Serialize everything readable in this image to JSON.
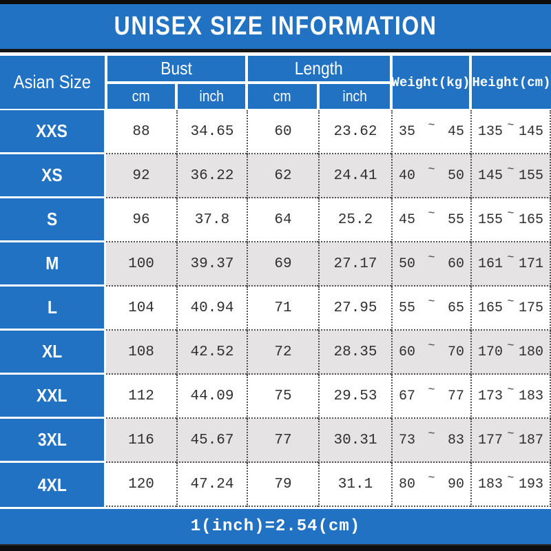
{
  "title": "UNISEX SIZE INFORMATION",
  "footer": {
    "note": "1(inch)=2.54(cm)"
  },
  "colors": {
    "blue": "#2272c3",
    "alt_row_gray": "#e5e3e4",
    "bar_black": "#0d0d0d",
    "grid_dot": "#4d4d4d",
    "text_dark": "#2f2f2f",
    "text_white": "#ffffff"
  },
  "table": {
    "corner_header": "Asian Size",
    "groups": [
      {
        "label": "Bust"
      },
      {
        "label": "Length"
      }
    ],
    "sub_headers": [
      "cm",
      "inch",
      "cm",
      "inch"
    ],
    "span_headers": [
      "Weight(kg)",
      "Height(cm)"
    ],
    "tilde": "~",
    "rows": [
      {
        "size": "XXS",
        "bust_cm": "88",
        "bust_in": "34.65",
        "len_cm": "60",
        "len_in": "23.62",
        "w_min": "35",
        "w_max": "45",
        "h_min": "135",
        "h_max": "145"
      },
      {
        "size": "XS",
        "bust_cm": "92",
        "bust_in": "36.22",
        "len_cm": "62",
        "len_in": "24.41",
        "w_min": "40",
        "w_max": "50",
        "h_min": "145",
        "h_max": "155"
      },
      {
        "size": "S",
        "bust_cm": "96",
        "bust_in": "37.8",
        "len_cm": "64",
        "len_in": "25.2",
        "w_min": "45",
        "w_max": "55",
        "h_min": "155",
        "h_max": "165"
      },
      {
        "size": "M",
        "bust_cm": "100",
        "bust_in": "39.37",
        "len_cm": "69",
        "len_in": "27.17",
        "w_min": "50",
        "w_max": "60",
        "h_min": "161",
        "h_max": "171"
      },
      {
        "size": "L",
        "bust_cm": "104",
        "bust_in": "40.94",
        "len_cm": "71",
        "len_in": "27.95",
        "w_min": "55",
        "w_max": "65",
        "h_min": "165",
        "h_max": "175"
      },
      {
        "size": "XL",
        "bust_cm": "108",
        "bust_in": "42.52",
        "len_cm": "72",
        "len_in": "28.35",
        "w_min": "60",
        "w_max": "70",
        "h_min": "170",
        "h_max": "180"
      },
      {
        "size": "XXL",
        "bust_cm": "112",
        "bust_in": "44.09",
        "len_cm": "75",
        "len_in": "29.53",
        "w_min": "67",
        "w_max": "77",
        "h_min": "173",
        "h_max": "183"
      },
      {
        "size": "3XL",
        "bust_cm": "116",
        "bust_in": "45.67",
        "len_cm": "77",
        "len_in": "30.31",
        "w_min": "73",
        "w_max": "83",
        "h_min": "177",
        "h_max": "187"
      },
      {
        "size": "4XL",
        "bust_cm": "120",
        "bust_in": "47.24",
        "len_cm": "79",
        "len_in": "31.1",
        "w_min": "80",
        "w_max": "90",
        "h_min": "183",
        "h_max": "193"
      }
    ]
  },
  "chart_data": {
    "type": "table",
    "title": "UNISEX SIZE INFORMATION",
    "columns": [
      "Asian Size",
      "Bust cm",
      "Bust inch",
      "Length cm",
      "Length inch",
      "Weight(kg)",
      "Height(cm)"
    ],
    "rows": [
      [
        "XXS",
        88,
        34.65,
        60,
        23.62,
        "35~45",
        "135~145"
      ],
      [
        "XS",
        92,
        36.22,
        62,
        24.41,
        "40~50",
        "145~155"
      ],
      [
        "S",
        96,
        37.8,
        64,
        25.2,
        "45~55",
        "155~165"
      ],
      [
        "M",
        100,
        39.37,
        69,
        27.17,
        "50~60",
        "161~171"
      ],
      [
        "L",
        104,
        40.94,
        71,
        27.95,
        "55~65",
        "165~175"
      ],
      [
        "XL",
        108,
        42.52,
        72,
        28.35,
        "60~70",
        "170~180"
      ],
      [
        "XXL",
        112,
        44.09,
        75,
        29.53,
        "67~77",
        "173~183"
      ],
      [
        "3XL",
        116,
        45.67,
        77,
        30.31,
        "73~83",
        "177~187"
      ],
      [
        "4XL",
        120,
        47.24,
        79,
        31.1,
        "80~90",
        "183~193"
      ]
    ],
    "note": "1(inch)=2.54(cm)",
    "layout": "striped rows (white/gray), blue header band, black top and bottom bars"
  }
}
